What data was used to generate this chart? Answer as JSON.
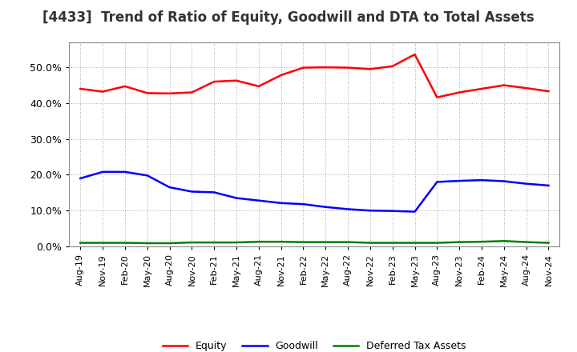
{
  "title": "[4433]  Trend of Ratio of Equity, Goodwill and DTA to Total Assets",
  "x_labels": [
    "Aug-19",
    "Nov-19",
    "Feb-20",
    "May-20",
    "Aug-20",
    "Nov-20",
    "Feb-21",
    "May-21",
    "Aug-21",
    "Nov-21",
    "Feb-22",
    "May-22",
    "Aug-22",
    "Nov-22",
    "Feb-23",
    "May-23",
    "Aug-23",
    "Nov-23",
    "Feb-24",
    "May-24",
    "Aug-24",
    "Nov-24"
  ],
  "equity": [
    0.44,
    0.432,
    0.447,
    0.428,
    0.427,
    0.43,
    0.46,
    0.463,
    0.447,
    0.478,
    0.499,
    0.5,
    0.499,
    0.495,
    0.503,
    0.536,
    0.416,
    0.43,
    0.44,
    0.45,
    0.442,
    0.433
  ],
  "goodwill": [
    0.19,
    0.208,
    0.208,
    0.198,
    0.165,
    0.153,
    0.151,
    0.135,
    0.128,
    0.121,
    0.118,
    0.11,
    0.104,
    0.1,
    0.099,
    0.097,
    0.18,
    0.183,
    0.185,
    0.182,
    0.175,
    0.17
  ],
  "dta": [
    0.01,
    0.01,
    0.01,
    0.009,
    0.009,
    0.011,
    0.011,
    0.011,
    0.013,
    0.013,
    0.012,
    0.012,
    0.012,
    0.01,
    0.01,
    0.01,
    0.01,
    0.012,
    0.013,
    0.015,
    0.012,
    0.01
  ],
  "equity_color": "#FF0000",
  "goodwill_color": "#0000FF",
  "dta_color": "#008000",
  "ylim": [
    0.0,
    0.57
  ],
  "yticks": [
    0.0,
    0.1,
    0.2,
    0.3,
    0.4,
    0.5
  ],
  "background_color": "#FFFFFF",
  "plot_bg_color": "#FFFFFF",
  "grid_color": "#AAAAAA",
  "legend_labels": [
    "Equity",
    "Goodwill",
    "Deferred Tax Assets"
  ],
  "title_fontsize": 12,
  "tick_fontsize": 8,
  "ytick_fontsize": 9
}
